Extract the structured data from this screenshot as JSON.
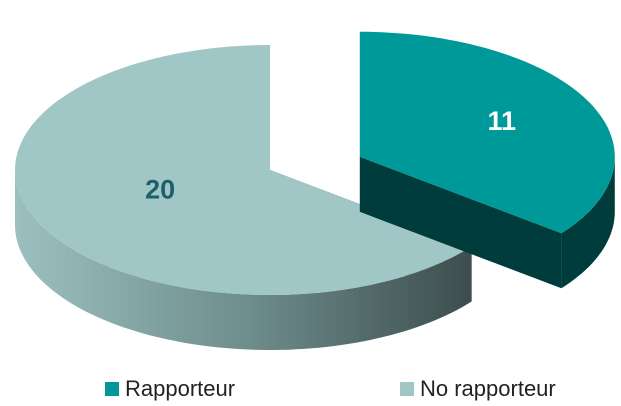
{
  "chart_data": {
    "type": "pie",
    "categories": [
      "Rapporteur",
      "No rapporteur"
    ],
    "values": [
      11,
      20
    ],
    "colors": [
      "#009999",
      "#a0c6c6"
    ],
    "side_colors": [
      "#003c3c",
      "#4a5c5c"
    ],
    "label_colors": [
      "#ffffff",
      "#1f5f6a"
    ],
    "exploded": [
      true,
      false
    ]
  }
}
